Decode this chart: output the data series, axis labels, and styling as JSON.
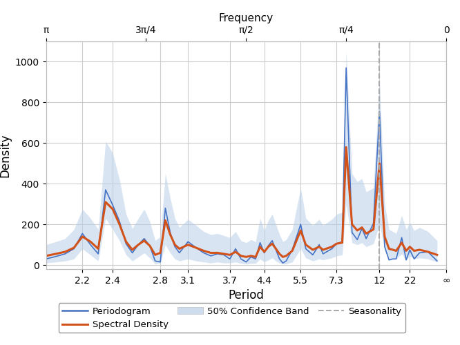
{
  "xlabel": "Period",
  "ylabel": "Density",
  "top_xlabel": "Frequency",
  "ylim": [
    -20,
    1100
  ],
  "background_color": "#ffffff",
  "grid_color": "#cccccc",
  "periodogram_color": "#4472c4",
  "spectral_color": "#d2521a",
  "band_color": "#b8cfe8",
  "seasonality_color": "#aaaaaa",
  "seasonality_period": 12.0,
  "x_tick_periods": [
    2.2,
    2.4,
    2.8,
    3.1,
    3.7,
    4.4,
    5.5,
    7.3,
    12.0,
    22.0
  ],
  "x_tick_labels": [
    "2.2",
    "2.4",
    "2.8",
    "3.1",
    "3.7",
    "4.4",
    "5.5",
    "7.3",
    "12",
    "22",
    "∞"
  ],
  "top_tick_freqs": [
    3.14159,
    2.35619,
    1.5708,
    0.7854,
    0.0
  ],
  "top_tick_labels": [
    "π",
    "3π/4",
    "π/2",
    "π/4",
    "0"
  ],
  "freq_min": 0.0,
  "freq_max": 3.14159,
  "period_data": [
    2.0,
    2.05,
    2.1,
    2.15,
    2.2,
    2.25,
    2.3,
    2.35,
    2.4,
    2.45,
    2.5,
    2.55,
    2.6,
    2.65,
    2.7,
    2.75,
    2.8,
    2.85,
    2.9,
    2.95,
    3.0,
    3.1,
    3.2,
    3.3,
    3.4,
    3.5,
    3.6,
    3.7,
    3.8,
    3.9,
    4.0,
    4.1,
    4.2,
    4.3,
    4.4,
    4.5,
    4.6,
    4.7,
    4.8,
    4.9,
    5.0,
    5.2,
    5.5,
    5.7,
    6.0,
    6.3,
    6.5,
    7.0,
    7.3,
    7.7,
    8.0,
    8.5,
    9.0,
    9.5,
    10.0,
    11.0,
    12.0,
    13.0,
    14.0,
    15.0,
    16.0,
    18.0,
    20.0,
    22.0,
    25.0,
    30.0,
    44.0,
    88.0
  ],
  "periodogram": [
    30,
    42,
    55,
    80,
    155,
    100,
    55,
    370,
    295,
    215,
    105,
    60,
    100,
    130,
    95,
    20,
    15,
    280,
    160,
    90,
    60,
    115,
    85,
    60,
    45,
    55,
    50,
    30,
    80,
    30,
    15,
    40,
    30,
    110,
    60,
    95,
    120,
    75,
    30,
    10,
    20,
    75,
    200,
    80,
    50,
    100,
    55,
    80,
    105,
    115,
    970,
    160,
    125,
    180,
    130,
    205,
    755,
    90,
    25,
    30,
    30,
    135,
    25,
    75,
    30,
    60,
    65,
    20
  ],
  "spectral": [
    45,
    55,
    65,
    85,
    140,
    115,
    80,
    310,
    275,
    200,
    115,
    75,
    100,
    120,
    95,
    50,
    60,
    220,
    150,
    100,
    80,
    100,
    85,
    70,
    60,
    60,
    55,
    50,
    65,
    45,
    40,
    45,
    40,
    90,
    65,
    90,
    105,
    80,
    55,
    40,
    45,
    70,
    170,
    100,
    75,
    90,
    75,
    90,
    105,
    110,
    580,
    200,
    170,
    185,
    155,
    175,
    500,
    140,
    80,
    75,
    70,
    110,
    70,
    90,
    70,
    75,
    65,
    50
  ],
  "band_lower": [
    10,
    15,
    20,
    30,
    80,
    50,
    20,
    230,
    175,
    120,
    50,
    20,
    40,
    60,
    35,
    5,
    10,
    100,
    60,
    30,
    20,
    30,
    20,
    15,
    10,
    15,
    10,
    10,
    15,
    8,
    5,
    8,
    8,
    30,
    15,
    25,
    35,
    20,
    10,
    5,
    5,
    15,
    80,
    35,
    20,
    30,
    25,
    35,
    45,
    50,
    300,
    110,
    100,
    110,
    90,
    105,
    200,
    80,
    35,
    30,
    30,
    55,
    25,
    45,
    30,
    35,
    30,
    15
  ],
  "band_upper": [
    100,
    115,
    130,
    175,
    275,
    230,
    175,
    610,
    550,
    420,
    250,
    180,
    230,
    275,
    215,
    120,
    140,
    450,
    330,
    230,
    185,
    225,
    195,
    165,
    150,
    155,
    145,
    135,
    165,
    120,
    110,
    125,
    115,
    230,
    170,
    220,
    250,
    200,
    150,
    115,
    125,
    175,
    380,
    230,
    195,
    225,
    195,
    225,
    250,
    260,
    1050,
    450,
    410,
    425,
    360,
    380,
    910,
    300,
    175,
    165,
    155,
    245,
    175,
    210,
    170,
    185,
    165,
    120
  ]
}
